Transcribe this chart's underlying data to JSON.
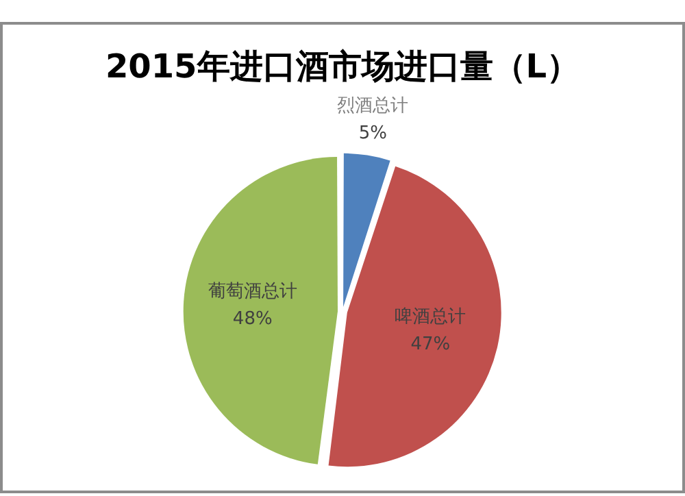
{
  "chart_data": {
    "type": "pie",
    "title": "2015年进口酒市场进口量（L）",
    "categories": [
      "烈酒总计",
      "啤酒总计",
      "葡萄酒总计"
    ],
    "values": [
      5,
      47,
      48
    ],
    "colors": [
      "#4f81bd",
      "#c0504d",
      "#9bbb59"
    ],
    "value_labels": [
      "5%",
      "47%",
      "48%"
    ]
  }
}
